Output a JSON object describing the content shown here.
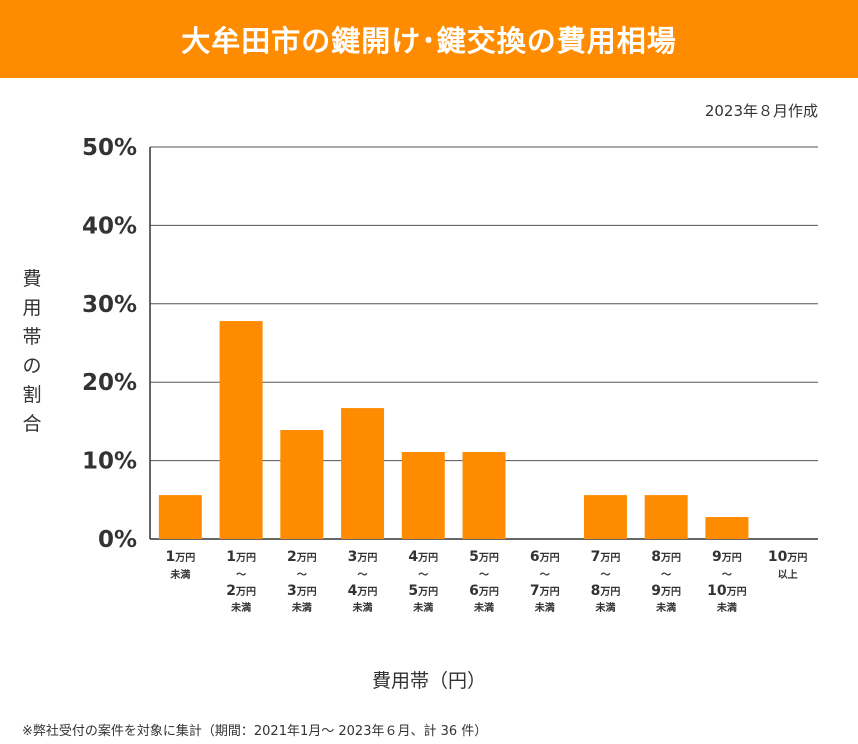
{
  "header": {
    "title": "大牟田市の鍵開け･鍵交換の費用相場"
  },
  "date_note": "2023年８月作成",
  "footnote": "※弊社受付の案件を対象に集計（期間：2021年1月～ 2023年６月、計 36 件）",
  "colors": {
    "bar": "#FF8C00",
    "grid": "#555555",
    "title_band": "#FF8C00"
  },
  "chart_data": {
    "type": "bar",
    "title": "大牟田市の鍵開け･鍵交換の費用相場",
    "xlabel": "費用帯（円）",
    "ylabel": "費用帯の割合",
    "ylim": [
      0,
      50
    ],
    "yticks": [
      "0%",
      "10%",
      "20%",
      "30%",
      "40%",
      "50%"
    ],
    "grid": true,
    "categories": [
      {
        "lines": [
          [
            "1",
            "万円"
          ],
          [
            "",
            "未満"
          ]
        ]
      },
      {
        "lines": [
          [
            "1",
            "万円"
          ],
          [
            "",
            "～"
          ],
          [
            "2",
            "万円"
          ],
          [
            "",
            "未満"
          ]
        ]
      },
      {
        "lines": [
          [
            "2",
            "万円"
          ],
          [
            "",
            "～"
          ],
          [
            "3",
            "万円"
          ],
          [
            "",
            "未満"
          ]
        ]
      },
      {
        "lines": [
          [
            "3",
            "万円"
          ],
          [
            "",
            "～"
          ],
          [
            "4",
            "万円"
          ],
          [
            "",
            "未満"
          ]
        ]
      },
      {
        "lines": [
          [
            "4",
            "万円"
          ],
          [
            "",
            "～"
          ],
          [
            "5",
            "万円"
          ],
          [
            "",
            "未満"
          ]
        ]
      },
      {
        "lines": [
          [
            "5",
            "万円"
          ],
          [
            "",
            "～"
          ],
          [
            "6",
            "万円"
          ],
          [
            "",
            "未満"
          ]
        ]
      },
      {
        "lines": [
          [
            "6",
            "万円"
          ],
          [
            "",
            "～"
          ],
          [
            "7",
            "万円"
          ],
          [
            "",
            "未満"
          ]
        ]
      },
      {
        "lines": [
          [
            "7",
            "万円"
          ],
          [
            "",
            "～"
          ],
          [
            "8",
            "万円"
          ],
          [
            "",
            "未満"
          ]
        ]
      },
      {
        "lines": [
          [
            "8",
            "万円"
          ],
          [
            "",
            "～"
          ],
          [
            "9",
            "万円"
          ],
          [
            "",
            "未満"
          ]
        ]
      },
      {
        "lines": [
          [
            "9",
            "万円"
          ],
          [
            "",
            "～"
          ],
          [
            "10",
            "万円"
          ],
          [
            "",
            "未満"
          ]
        ]
      },
      {
        "lines": [
          [
            "10",
            "万円"
          ],
          [
            "",
            "以上"
          ]
        ]
      }
    ],
    "values": [
      5.6,
      27.8,
      13.9,
      16.7,
      11.1,
      11.1,
      0,
      5.6,
      5.6,
      2.8,
      0
    ]
  }
}
